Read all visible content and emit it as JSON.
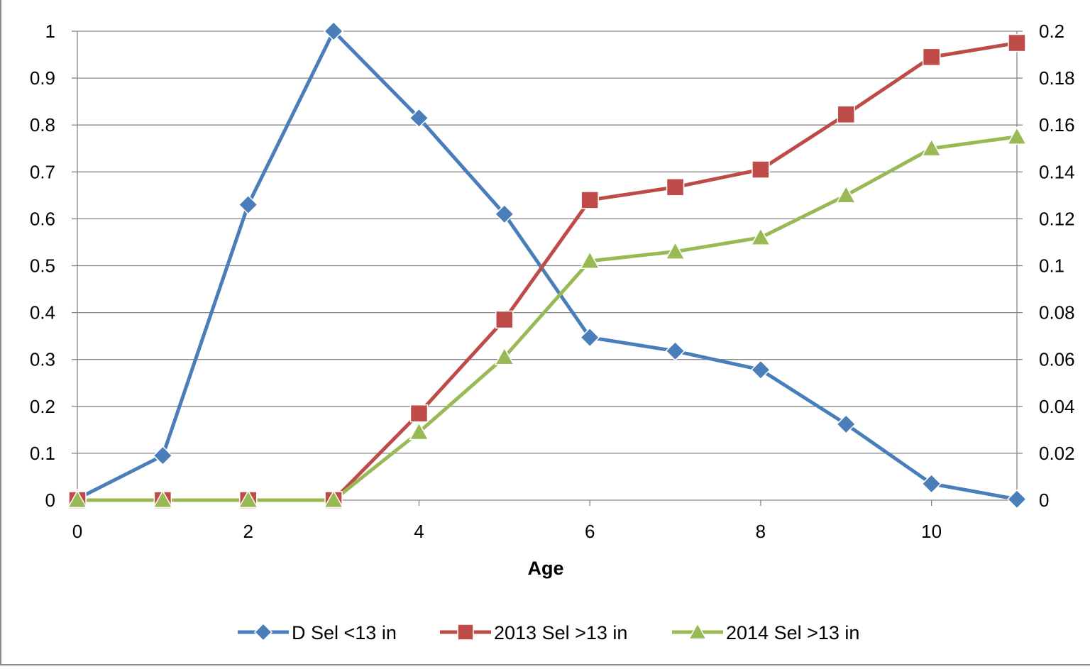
{
  "chart_data": {
    "type": "line",
    "title": "",
    "xlabel": "Age",
    "ylabel": "",
    "x_ticks": [
      "0",
      "2",
      "4",
      "6",
      "8",
      "10"
    ],
    "x_range": [
      0,
      11
    ],
    "y_left_range": [
      0,
      1
    ],
    "y_left_ticks": [
      "0",
      "0.1",
      "0.2",
      "0.3",
      "0.4",
      "0.5",
      "0.6",
      "0.7",
      "0.8",
      "0.9",
      "1"
    ],
    "y_right_range": [
      0,
      0.2
    ],
    "y_right_ticks": [
      "0",
      "0.02",
      "0.04",
      "0.06",
      "0.08",
      "0.1",
      "0.12",
      "0.14",
      "0.16",
      "0.18",
      "0.2"
    ],
    "grid": "horizontal",
    "legend_position": "bottom",
    "x": [
      0,
      1,
      2,
      3,
      4,
      5,
      6,
      7,
      8,
      9,
      10,
      11
    ],
    "series": [
      {
        "name": "D Sel <13 in",
        "axis": "left",
        "color": "#4a7ebb",
        "marker": "diamond",
        "values": [
          0.003,
          0.095,
          0.63,
          1.0,
          0.815,
          0.61,
          0.347,
          0.318,
          0.278,
          0.162,
          0.035,
          0.002
        ]
      },
      {
        "name": "2013 Sel >13 in",
        "axis": "right",
        "color": "#be4b48",
        "marker": "square",
        "values": [
          0,
          0,
          0,
          0,
          0.037,
          0.077,
          0.128,
          0.1335,
          0.141,
          0.1645,
          0.189,
          0.195
        ]
      },
      {
        "name": "2014 Sel >13 in",
        "axis": "right",
        "color": "#98b954",
        "marker": "triangle",
        "values": [
          0,
          0,
          0,
          0,
          0.029,
          0.061,
          0.102,
          0.106,
          0.112,
          0.13,
          0.15,
          0.155
        ]
      }
    ]
  }
}
